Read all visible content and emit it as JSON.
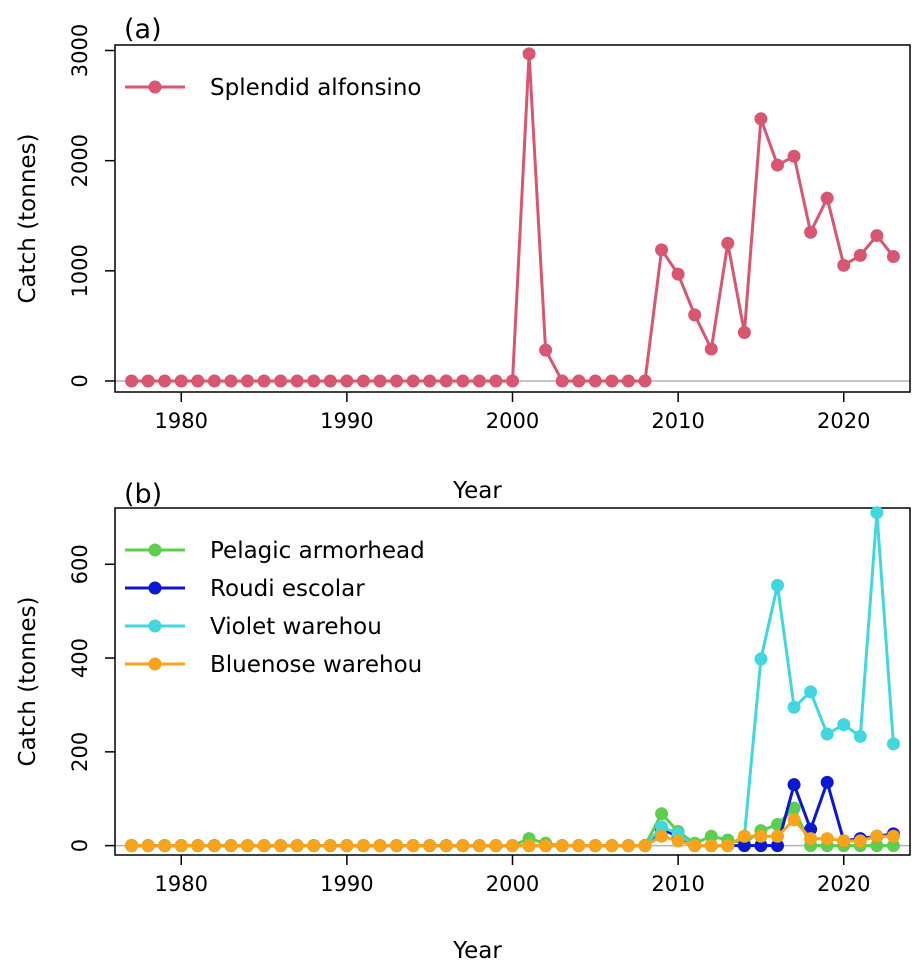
{
  "chart_data": [
    {
      "type": "line",
      "panel_label": "(a)",
      "xlabel": "Year",
      "ylabel": "Catch (tonnes)",
      "xlim": [
        1976,
        2024
      ],
      "ylim": [
        -100,
        3050
      ],
      "xticks": [
        1980,
        1990,
        2000,
        2010,
        2020
      ],
      "yticks": [
        0,
        1000,
        2000,
        3000
      ],
      "legend_position": "top-left",
      "x": [
        1977,
        1978,
        1979,
        1980,
        1981,
        1982,
        1983,
        1984,
        1985,
        1986,
        1987,
        1988,
        1989,
        1990,
        1991,
        1992,
        1993,
        1994,
        1995,
        1996,
        1997,
        1998,
        1999,
        2000,
        2001,
        2002,
        2003,
        2004,
        2005,
        2006,
        2007,
        2008,
        2009,
        2010,
        2011,
        2012,
        2013,
        2014,
        2015,
        2016,
        2017,
        2018,
        2019,
        2020,
        2021,
        2022,
        2023
      ],
      "series": [
        {
          "name": "Splendid alfonsino",
          "color": "#d95670",
          "values": [
            0,
            0,
            0,
            0,
            0,
            0,
            0,
            0,
            0,
            0,
            0,
            0,
            0,
            0,
            0,
            0,
            0,
            0,
            0,
            0,
            0,
            0,
            0,
            0,
            2970,
            280,
            0,
            0,
            0,
            0,
            0,
            0,
            1190,
            970,
            600,
            290,
            1250,
            440,
            2380,
            1960,
            2040,
            1350,
            1660,
            1050,
            1140,
            1320,
            1130
          ]
        }
      ]
    },
    {
      "type": "line",
      "panel_label": "(b)",
      "xlabel": "Year",
      "ylabel": "Catch (tonnes)",
      "xlim": [
        1976,
        2024
      ],
      "ylim": [
        -20,
        720
      ],
      "xticks": [
        1980,
        1990,
        2000,
        2010,
        2020
      ],
      "yticks": [
        0,
        200,
        400,
        600
      ],
      "legend_position": "top-left",
      "x": [
        1977,
        1978,
        1979,
        1980,
        1981,
        1982,
        1983,
        1984,
        1985,
        1986,
        1987,
        1988,
        1989,
        1990,
        1991,
        1992,
        1993,
        1994,
        1995,
        1996,
        1997,
        1998,
        1999,
        2000,
        2001,
        2002,
        2003,
        2004,
        2005,
        2006,
        2007,
        2008,
        2009,
        2010,
        2011,
        2012,
        2013,
        2014,
        2015,
        2016,
        2017,
        2018,
        2019,
        2020,
        2021,
        2022,
        2023
      ],
      "series": [
        {
          "name": "Pelagic armorhead",
          "color": "#5ccf4c",
          "values": [
            0,
            0,
            0,
            0,
            0,
            0,
            0,
            0,
            0,
            0,
            0,
            0,
            0,
            0,
            0,
            0,
            0,
            0,
            0,
            0,
            0,
            0,
            0,
            0,
            15,
            5,
            0,
            0,
            0,
            0,
            0,
            0,
            68,
            30,
            5,
            20,
            12,
            5,
            32,
            45,
            80,
            0,
            0,
            0,
            0,
            0,
            0
          ]
        },
        {
          "name": "Roudi escolar",
          "color": "#0a17d4",
          "values": [
            0,
            0,
            0,
            0,
            0,
            0,
            0,
            0,
            0,
            0,
            0,
            0,
            0,
            0,
            0,
            0,
            0,
            0,
            0,
            0,
            0,
            0,
            0,
            0,
            0,
            0,
            0,
            0,
            0,
            0,
            0,
            0,
            35,
            20,
            0,
            0,
            0,
            0,
            0,
            0,
            130,
            35,
            135,
            10,
            15,
            20,
            25
          ]
        },
        {
          "name": "Violet warehou",
          "color": "#3ed8de",
          "values": [
            0,
            0,
            0,
            0,
            0,
            0,
            0,
            0,
            0,
            0,
            0,
            0,
            0,
            0,
            0,
            0,
            0,
            0,
            0,
            0,
            0,
            0,
            0,
            0,
            0,
            0,
            0,
            0,
            0,
            0,
            0,
            0,
            40,
            25,
            0,
            0,
            0,
            20,
            398,
            555,
            295,
            328,
            238,
            258,
            233,
            710,
            217
          ]
        },
        {
          "name": "Bluenose warehou",
          "color": "#f7a41b",
          "values": [
            0,
            0,
            0,
            0,
            0,
            0,
            0,
            0,
            0,
            0,
            0,
            0,
            0,
            0,
            0,
            0,
            0,
            0,
            0,
            0,
            0,
            0,
            0,
            0,
            0,
            0,
            0,
            0,
            0,
            0,
            0,
            0,
            20,
            10,
            0,
            0,
            0,
            20,
            20,
            20,
            55,
            15,
            15,
            10,
            10,
            20,
            20
          ]
        }
      ]
    }
  ]
}
